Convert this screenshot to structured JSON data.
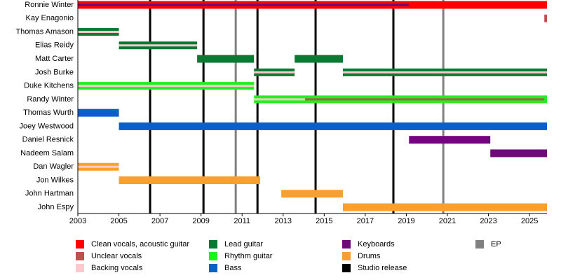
{
  "chart_data": {
    "type": "timeline",
    "xlim": [
      2003,
      2025.85
    ],
    "xticks": [
      2003,
      2005,
      2007,
      2009,
      2011,
      2013,
      2015,
      2017,
      2019,
      2021,
      2023,
      2025
    ],
    "legend": [
      {
        "name": "Clean vocals, acoustic guitar",
        "color": "#ff0000"
      },
      {
        "name": "Unclear vocals",
        "color": "#b85450"
      },
      {
        "name": "Backing vocals",
        "color": "#ffc8cc"
      },
      {
        "name": "Lead guitar",
        "color": "#0a7a32"
      },
      {
        "name": "Rhythm guitar",
        "color": "#22ee22"
      },
      {
        "name": "Bass",
        "color": "#0a60c8"
      },
      {
        "name": "Keyboards",
        "color": "#6e0a78"
      },
      {
        "name": "Drums",
        "color": "#f5a030"
      },
      {
        "name": "Studio release",
        "color": "#000000"
      },
      {
        "name": "EP",
        "color": "#808080"
      }
    ],
    "events": [
      {
        "x": 2006.52,
        "kind": "Studio release"
      },
      {
        "x": 2009.12,
        "kind": "Studio release"
      },
      {
        "x": 2010.69,
        "kind": "EP"
      },
      {
        "x": 2011.75,
        "kind": "Studio release"
      },
      {
        "x": 2014.58,
        "kind": "Studio release"
      },
      {
        "x": 2018.37,
        "kind": "Studio release"
      },
      {
        "x": 2020.8,
        "kind": "EP"
      }
    ],
    "rows": [
      {
        "name": "Ronnie Winter",
        "bars": [
          {
            "start": 2003,
            "end": 2025.85,
            "role": "Clean vocals, acoustic guitar"
          },
          {
            "start": 2003,
            "end": 2019.13,
            "role": "Keyboards"
          }
        ]
      },
      {
        "name": "Kay Enagonio",
        "bars": [
          {
            "start": 2025.72,
            "end": 2025.85,
            "role": "Unclear vocals"
          }
        ]
      },
      {
        "name": "Thomas Amason",
        "bars": [
          {
            "start": 2003,
            "end": 2005,
            "role": "Lead guitar"
          },
          {
            "start": 2003,
            "end": 2005,
            "role": "Backing vocals"
          }
        ]
      },
      {
        "name": "Elias Reidy",
        "bars": [
          {
            "start": 2005,
            "end": 2008.81,
            "role": "Lead guitar"
          },
          {
            "start": 2005,
            "end": 2008.81,
            "role": "Backing vocals"
          }
        ]
      },
      {
        "name": "Matt Carter",
        "bars": [
          {
            "start": 2008.81,
            "end": 2011.58,
            "role": "Lead guitar"
          },
          {
            "start": 2013.56,
            "end": 2015.91,
            "role": "Lead guitar"
          }
        ]
      },
      {
        "name": "Josh Burke",
        "bars": [
          {
            "start": 2011.58,
            "end": 2013.56,
            "role": "Lead guitar"
          },
          {
            "start": 2011.58,
            "end": 2013.56,
            "role": "Backing vocals"
          },
          {
            "start": 2015.91,
            "end": 2025.85,
            "role": "Lead guitar"
          },
          {
            "start": 2015.91,
            "end": 2025.85,
            "role": "Backing vocals"
          }
        ]
      },
      {
        "name": "Duke Kitchens",
        "bars": [
          {
            "start": 2003,
            "end": 2011.58,
            "role": "Rhythm guitar"
          },
          {
            "start": 2003,
            "end": 2011.58,
            "role": "Backing vocals"
          }
        ]
      },
      {
        "name": "Randy Winter",
        "bars": [
          {
            "start": 2011.58,
            "end": 2025.85,
            "role": "Rhythm guitar"
          },
          {
            "start": 2011.58,
            "end": 2014.07,
            "role": "Backing vocals"
          },
          {
            "start": 2014.07,
            "end": 2025.72,
            "role": "Unclear vocals"
          }
        ]
      },
      {
        "name": "Thomas Wurth",
        "bars": [
          {
            "start": 2003,
            "end": 2005,
            "role": "Bass"
          }
        ]
      },
      {
        "name": "Joey Westwood",
        "bars": [
          {
            "start": 2005,
            "end": 2025.85,
            "role": "Bass"
          }
        ]
      },
      {
        "name": "Daniel Resnick",
        "bars": [
          {
            "start": 2019.13,
            "end": 2023.09,
            "role": "Keyboards"
          }
        ]
      },
      {
        "name": "Nadeem Salam",
        "bars": [
          {
            "start": 2023.09,
            "end": 2025.85,
            "role": "Keyboards"
          }
        ]
      },
      {
        "name": "Dan Wagler",
        "bars": [
          {
            "start": 2003,
            "end": 2005,
            "role": "Drums"
          },
          {
            "start": 2003,
            "end": 2005,
            "role": "Backing vocals"
          }
        ]
      },
      {
        "name": "Jon Wilkes",
        "bars": [
          {
            "start": 2005,
            "end": 2011.88,
            "role": "Drums"
          }
        ]
      },
      {
        "name": "John Hartman",
        "bars": [
          {
            "start": 2012.91,
            "end": 2015.91,
            "role": "Drums"
          }
        ]
      },
      {
        "name": "John Espy",
        "bars": [
          {
            "start": 2015.91,
            "end": 2025.85,
            "role": "Drums"
          }
        ]
      }
    ]
  }
}
